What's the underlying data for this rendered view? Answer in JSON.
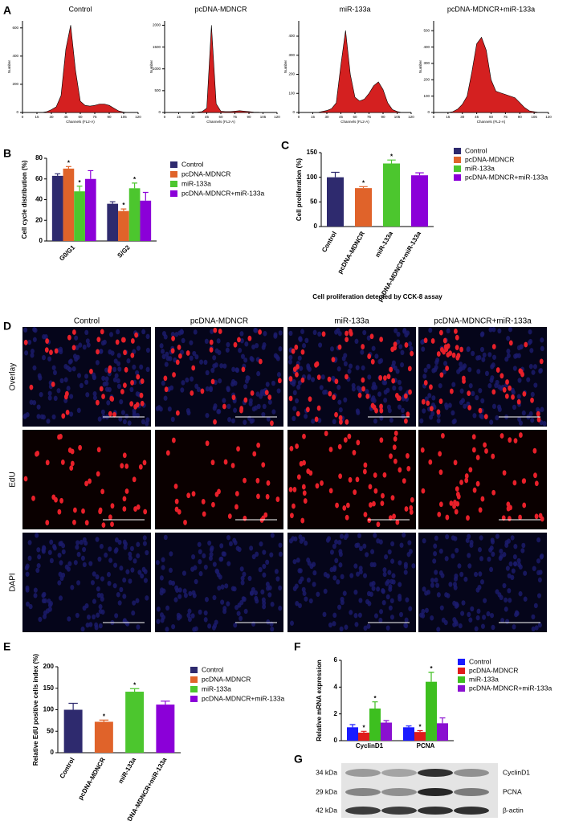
{
  "panel_labels": [
    "A",
    "B",
    "C",
    "D",
    "E",
    "F",
    "G"
  ],
  "chart_data": [
    {
      "type": "area",
      "title": "Control",
      "xlabel": "Channels (FL2-A)",
      "ylabel": "Number",
      "color": "#d42020",
      "x": [
        0,
        5,
        10,
        15,
        20,
        25,
        30,
        35,
        40,
        45,
        50,
        55,
        60,
        65,
        70,
        75,
        80,
        85,
        90,
        95,
        100,
        105,
        110,
        115,
        120
      ],
      "values": [
        0,
        0,
        0,
        0,
        0,
        5,
        20,
        40,
        120,
        450,
        620,
        300,
        80,
        50,
        45,
        50,
        60,
        60,
        50,
        30,
        10,
        3,
        0,
        0,
        0
      ],
      "xlim": [
        0,
        120
      ],
      "xticks": [
        0,
        15,
        30,
        45,
        60,
        75,
        90,
        105,
        120
      ],
      "ylim": [
        0,
        650
      ],
      "yticks": [
        0,
        200,
        400,
        600
      ]
    },
    {
      "type": "area",
      "title": "pcDNA-MDNCR",
      "xlabel": "Channels (FL2-A)",
      "ylabel": "Number",
      "color": "#d42020",
      "x": [
        0,
        5,
        10,
        15,
        20,
        25,
        30,
        35,
        40,
        45,
        50,
        55,
        60,
        65,
        70,
        75,
        80,
        85,
        90,
        95,
        100,
        105,
        110,
        115,
        120
      ],
      "values": [
        0,
        0,
        0,
        0,
        0,
        0,
        5,
        10,
        20,
        100,
        2000,
        200,
        30,
        20,
        20,
        30,
        40,
        30,
        20,
        10,
        5,
        0,
        0,
        0,
        0
      ],
      "xlim": [
        0,
        120
      ],
      "xticks": [
        0,
        15,
        30,
        45,
        60,
        75,
        90,
        105,
        120
      ],
      "ylim": [
        0,
        2100
      ],
      "yticks": [
        0,
        500,
        1000,
        1500,
        2000
      ]
    },
    {
      "type": "area",
      "title": "miR-133a",
      "xlabel": "Channels (FL2-A)",
      "ylabel": "Number",
      "color": "#d42020",
      "x": [
        0,
        5,
        10,
        15,
        20,
        25,
        30,
        35,
        40,
        45,
        50,
        55,
        60,
        65,
        70,
        75,
        80,
        85,
        90,
        95,
        100,
        105,
        110,
        115,
        120
      ],
      "values": [
        0,
        0,
        0,
        0,
        0,
        5,
        10,
        20,
        50,
        250,
        430,
        200,
        80,
        60,
        70,
        100,
        140,
        160,
        120,
        50,
        15,
        5,
        0,
        0,
        0
      ],
      "xlim": [
        0,
        120
      ],
      "xticks": [
        0,
        15,
        30,
        45,
        60,
        75,
        90,
        105,
        120
      ],
      "ylim": [
        0,
        480
      ],
      "yticks": [
        0,
        100,
        200,
        300,
        400
      ]
    },
    {
      "type": "area",
      "title": "pcDNA-MDNCR+miR-133a",
      "xlabel": "Channels (FL2-A)",
      "ylabel": "Number",
      "color": "#d42020",
      "x": [
        0,
        5,
        10,
        15,
        20,
        25,
        30,
        35,
        40,
        45,
        50,
        55,
        60,
        65,
        70,
        75,
        80,
        85,
        90,
        95,
        100,
        105,
        110,
        115,
        120
      ],
      "values": [
        0,
        0,
        0,
        0,
        5,
        20,
        50,
        100,
        250,
        420,
        460,
        380,
        200,
        130,
        120,
        110,
        100,
        90,
        60,
        30,
        10,
        5,
        0,
        0,
        0
      ],
      "xlim": [
        0,
        120
      ],
      "xticks": [
        0,
        15,
        30,
        45,
        60,
        75,
        90,
        105,
        120
      ],
      "ylim": [
        0,
        560
      ],
      "yticks": [
        0,
        100,
        200,
        300,
        400,
        500
      ]
    },
    {
      "type": "bar",
      "ylabel": "Cell cycle distribution (%)",
      "categories": [
        "G0/G1",
        "S/G2"
      ],
      "series": [
        {
          "name": "Control",
          "color": "#2e2a6e",
          "values": [
            63,
            36
          ],
          "errors": [
            2,
            2
          ]
        },
        {
          "name": "pcDNA-MDNCR",
          "color": "#e0632a",
          "values": [
            70,
            29
          ],
          "errors": [
            2,
            2
          ],
          "labels": [
            "*",
            "*"
          ]
        },
        {
          "name": "miR-133a",
          "color": "#4cc62e",
          "values": [
            48,
            51
          ],
          "errors": [
            5,
            5
          ],
          "labels": [
            "*",
            "*"
          ]
        },
        {
          "name": "pcDNA-MDNCR+miR-133a",
          "color": "#8b00d8",
          "values": [
            60,
            39
          ],
          "errors": [
            8,
            8
          ]
        }
      ],
      "ylim": [
        0,
        80
      ],
      "yticks": [
        0,
        20,
        40,
        60,
        80
      ]
    },
    {
      "type": "bar",
      "ylabel": "Cell proliferation (%)",
      "xlabel": "Cell proliferation detected by CCK-8 assay",
      "categories": [
        "Control",
        "pcDNA-MDNCR",
        "miR-133a",
        "pcDNA-MDNCR+miR-133a"
      ],
      "values": [
        100,
        78,
        128,
        104
      ],
      "errors": [
        10,
        3,
        7,
        5
      ],
      "labels": [
        null,
        "*",
        "*",
        null
      ],
      "colors": [
        "#2e2a6e",
        "#e0632a",
        "#4cc62e",
        "#8b00d8"
      ],
      "ylim": [
        0,
        150
      ],
      "yticks": [
        0,
        50,
        100,
        150
      ]
    },
    {
      "type": "bar",
      "ylabel": "Relative EdU positive cells index (%)",
      "categories": [
        "Control",
        "pcDNA-MDNCR",
        "miR-133a",
        "pcDNA-MDNCR+miR-133a"
      ],
      "values": [
        100,
        72,
        142,
        112
      ],
      "errors": [
        15,
        4,
        7,
        8
      ],
      "labels": [
        null,
        "*",
        "*",
        null
      ],
      "colors": [
        "#2e2a6e",
        "#e0632a",
        "#4cc62e",
        "#8b00d8"
      ],
      "ylim": [
        0,
        200
      ],
      "yticks": [
        0,
        50,
        100,
        150,
        200
      ]
    },
    {
      "type": "bar",
      "ylabel": "Relative mRNA expression",
      "categories": [
        "CyclinD1",
        "PCNA"
      ],
      "series": [
        {
          "name": "Control",
          "color": "#1a1aff",
          "values": [
            1.0,
            1.0
          ],
          "errors": [
            0.2,
            0.1
          ]
        },
        {
          "name": "pcDNA-MDNCR",
          "color": "#e01b1b",
          "values": [
            0.6,
            0.65
          ],
          "errors": [
            0.1,
            0.1
          ],
          "labels": [
            "*",
            "*"
          ]
        },
        {
          "name": "miR-133a",
          "color": "#3dbf1f",
          "values": [
            2.4,
            4.4
          ],
          "errors": [
            0.5,
            0.7
          ],
          "labels": [
            "*",
            "*"
          ]
        },
        {
          "name": "pcDNA-MDNCR+miR-133a",
          "color": "#8a10d0",
          "values": [
            1.35,
            1.3
          ],
          "errors": [
            0.15,
            0.4
          ]
        }
      ],
      "ylim": [
        0,
        6
      ],
      "yticks": [
        0,
        2,
        4,
        6
      ]
    }
  ],
  "microscopy": {
    "columns": [
      "Control",
      "pcDNA-MDNCR",
      "miR-133a",
      "pcDNA-MDNCR+miR-133a"
    ],
    "rows": [
      "Overlay",
      "EdU",
      "DAPI"
    ]
  },
  "western_blot": {
    "markers": [
      "34 kDa",
      "29 kDa",
      "42 kDa"
    ],
    "proteins": [
      "CyclinD1",
      "PCNA",
      "β-actin"
    ]
  }
}
